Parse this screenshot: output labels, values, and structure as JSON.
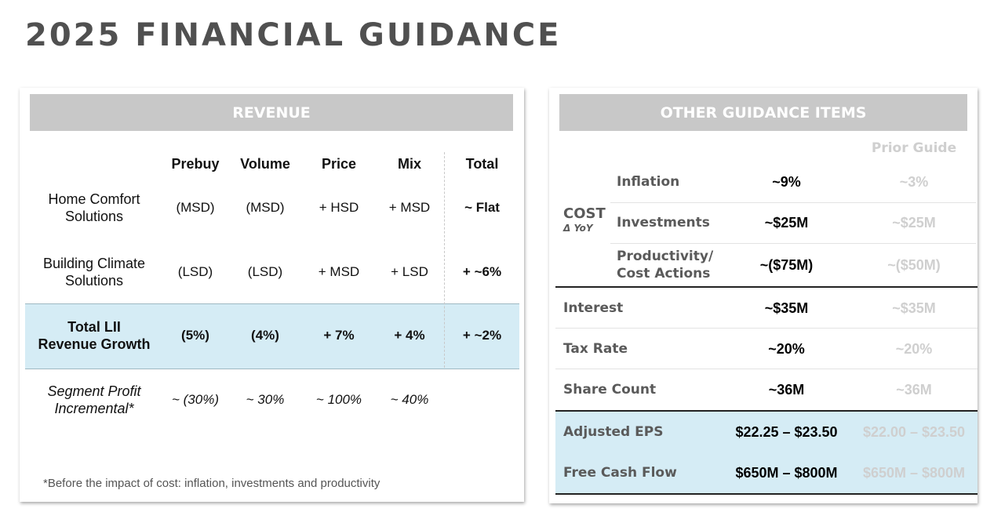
{
  "page_title": "2025 FINANCIAL GUIDANCE",
  "revenue": {
    "header": "REVENUE",
    "columns": [
      "Prebuy",
      "Volume",
      "Price",
      "Mix",
      "Total"
    ],
    "rows": [
      {
        "label": [
          "Home Comfort",
          "Solutions"
        ],
        "values": [
          "(MSD)",
          "(MSD)",
          "+ HSD",
          "+ MSD",
          "~ Flat"
        ]
      },
      {
        "label": [
          "Building Climate",
          "Solutions"
        ],
        "values": [
          "(LSD)",
          "(LSD)",
          "+ MSD",
          "+ LSD",
          "+ ~6%"
        ]
      },
      {
        "label": [
          "Total LII",
          "Revenue Growth"
        ],
        "values": [
          "(5%)",
          "(4%)",
          "+ 7%",
          "+ 4%",
          "+ ~2%"
        ]
      },
      {
        "label": [
          "Segment Profit",
          "Incremental*"
        ],
        "values": [
          "~ (30%)",
          "~ 30%",
          "~ 100%",
          "~ 40%",
          ""
        ]
      }
    ],
    "footnote": "*Before the impact of cost: inflation, investments and productivity"
  },
  "other": {
    "header": "OTHER GUIDANCE ITEMS",
    "prior_guide_label": "Prior Guide",
    "cost_label": "COST",
    "cost_sublabel": "Δ YoY",
    "cost_items": [
      {
        "label": [
          "Inflation"
        ],
        "value": "~9%",
        "prior": "~3%"
      },
      {
        "label": [
          "Investments"
        ],
        "value": "~$25M",
        "prior": "~$25M"
      },
      {
        "label": [
          "Productivity/",
          "Cost Actions"
        ],
        "value": "~($75M)",
        "prior": "~($50M)"
      }
    ],
    "items": [
      {
        "label": "Interest",
        "value": "~$35M",
        "prior": "~$35M"
      },
      {
        "label": "Tax Rate",
        "value": "~20%",
        "prior": "~20%"
      },
      {
        "label": "Share Count",
        "value": "~36M",
        "prior": "~36M"
      }
    ],
    "highlight_items": [
      {
        "label": "Adjusted EPS",
        "value": "$22.25 – $23.50",
        "prior": "$22.00 – $23.50"
      },
      {
        "label": "Free Cash Flow",
        "value": "$650M – $800M",
        "prior": "$650M – $800M"
      }
    ]
  }
}
